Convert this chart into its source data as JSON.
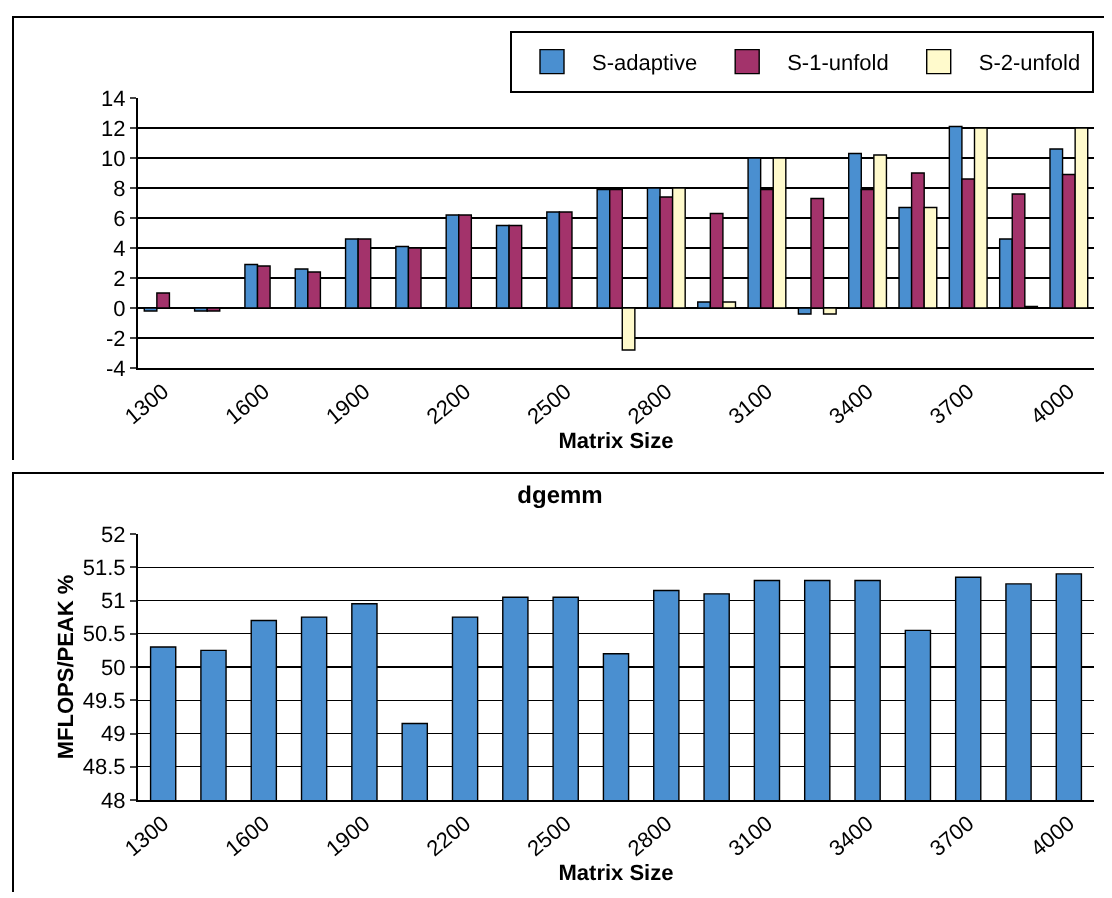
{
  "chart_data": [
    {
      "type": "bar",
      "xlabel": "Matrix Size",
      "categories": [
        "1300",
        null,
        "1600",
        null,
        "1900",
        null,
        "2200",
        null,
        "2500",
        null,
        "2800",
        null,
        "3100",
        null,
        "3400",
        null,
        "3700",
        null,
        "4000"
      ],
      "series": [
        {
          "name": "S-adaptive",
          "color": "#4a8fd0",
          "values": [
            -0.2,
            -0.2,
            2.9,
            2.6,
            4.6,
            4.1,
            6.2,
            5.5,
            6.4,
            7.9,
            8.0,
            0.4,
            10.0,
            -0.4,
            10.3,
            6.7,
            12.1,
            4.6,
            10.6
          ]
        },
        {
          "name": "S-1-unfold",
          "color": "#a3336b",
          "values": [
            1.0,
            -0.2,
            2.8,
            2.4,
            4.6,
            4.0,
            6.2,
            5.5,
            6.4,
            7.9,
            7.4,
            6.3,
            7.9,
            7.3,
            7.9,
            9.0,
            8.6,
            7.6,
            8.9
          ]
        },
        {
          "name": "S-2-unfold",
          "color": "#fffacc",
          "values": [
            null,
            null,
            null,
            null,
            null,
            null,
            null,
            null,
            null,
            -2.8,
            8.0,
            0.4,
            10.0,
            -0.4,
            10.2,
            6.7,
            12.0,
            0.1,
            12.0
          ]
        }
      ],
      "ylim": [
        -4,
        14
      ],
      "yticks": [
        -4,
        -2,
        0,
        2,
        4,
        6,
        8,
        10,
        12,
        14
      ],
      "grid": "y",
      "legend": "top right"
    },
    {
      "type": "bar",
      "title": "dgemm",
      "xlabel": "Matrix Size",
      "ylabel": "MFLOPS/PEAK %",
      "categories": [
        "1300",
        null,
        "1600",
        null,
        "1900",
        null,
        "2200",
        null,
        "2500",
        null,
        "2800",
        null,
        "3100",
        null,
        "3400",
        null,
        "3700",
        null,
        "4000"
      ],
      "series": [
        {
          "color": "#4a8fd0",
          "values": [
            50.3,
            50.25,
            50.7,
            50.75,
            50.95,
            49.15,
            50.75,
            51.05,
            51.05,
            50.2,
            51.15,
            51.1,
            51.3,
            51.3,
            51.3,
            50.55,
            51.35,
            51.25,
            51.4
          ]
        }
      ],
      "ylim": [
        48,
        52
      ],
      "yticks": [
        48,
        48.5,
        49,
        49.5,
        50,
        50.5,
        51,
        51.5,
        52
      ],
      "grid": "y",
      "legend": false
    }
  ]
}
